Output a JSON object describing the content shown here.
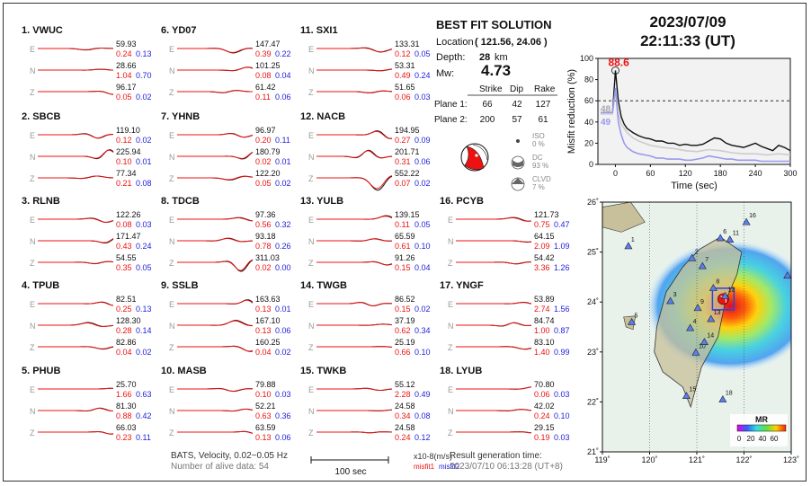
{
  "header": {
    "date": "2023/07/09",
    "time": "22:11:33  (UT)"
  },
  "solution": {
    "title": "BEST FIT SOLUTION",
    "location_label": "Location",
    "location_value": "( 121.56,  24.06 )",
    "depth_label": "Depth:",
    "depth_value": "28",
    "depth_unit": "km",
    "mw_label": "Mw:",
    "mw_value": "4.73",
    "col_strike": "Strike",
    "col_dip": "Dip",
    "col_rake": "Rake",
    "plane1_label": "Plane 1:",
    "plane1": [
      "66",
      "42",
      "127"
    ],
    "plane2_label": "Plane 2:",
    "plane2": [
      "200",
      "57",
      "61"
    ],
    "iso": [
      "ISO",
      "0 %"
    ],
    "dc": [
      "DC",
      "93 %"
    ],
    "clvd": [
      "CLVD",
      "7 %"
    ]
  },
  "stations": [
    {
      "label": "1.  VWUC",
      "rows": [
        {
          "c": "E",
          "amp": "59.93",
          "m1": "0.24",
          "m2": "0.13"
        },
        {
          "c": "N",
          "amp": "28.66",
          "m1": "1.04",
          "m2": "0.70"
        },
        {
          "c": "Z",
          "amp": "96.17",
          "m1": "0.05",
          "m2": "0.02"
        }
      ]
    },
    {
      "label": "2.  SBCB",
      "rows": [
        {
          "c": "E",
          "amp": "119.10",
          "m1": "0.12",
          "m2": "0.02"
        },
        {
          "c": "N",
          "amp": "225.94",
          "m1": "0.10",
          "m2": "0.01"
        },
        {
          "c": "Z",
          "amp": "77.34",
          "m1": "0.21",
          "m2": "0.08"
        }
      ]
    },
    {
      "label": "3.  RLNB",
      "rows": [
        {
          "c": "E",
          "amp": "122.26",
          "m1": "0.08",
          "m2": "0.03"
        },
        {
          "c": "N",
          "amp": "171.47",
          "m1": "0.43",
          "m2": "0.24"
        },
        {
          "c": "Z",
          "amp": "54.55",
          "m1": "0.35",
          "m2": "0.05"
        }
      ]
    },
    {
      "label": "4.  TPUB",
      "rows": [
        {
          "c": "E",
          "amp": "82.51",
          "m1": "0.25",
          "m2": "0.13"
        },
        {
          "c": "N",
          "amp": "128.30",
          "m1": "0.28",
          "m2": "0.14"
        },
        {
          "c": "Z",
          "amp": "82.86",
          "m1": "0.04",
          "m2": "0.02"
        }
      ]
    },
    {
      "label": "5.  PHUB",
      "rows": [
        {
          "c": "E",
          "amp": "25.70",
          "m1": "1.66",
          "m2": "0.63"
        },
        {
          "c": "N",
          "amp": "81.30",
          "m1": "0.88",
          "m2": "0.42"
        },
        {
          "c": "Z",
          "amp": "66.03",
          "m1": "0.23",
          "m2": "0.11"
        }
      ]
    },
    {
      "label": "6.  YD07",
      "rows": [
        {
          "c": "E",
          "amp": "147.47",
          "m1": "0.39",
          "m2": "0.22"
        },
        {
          "c": "N",
          "amp": "101.25",
          "m1": "0.08",
          "m2": "0.04"
        },
        {
          "c": "Z",
          "amp": "61.42",
          "m1": "0.11",
          "m2": "0.06"
        }
      ]
    },
    {
      "label": "7.  YHNB",
      "rows": [
        {
          "c": "E",
          "amp": "96.97",
          "m1": "0.20",
          "m2": "0.11"
        },
        {
          "c": "N",
          "amp": "180.79",
          "m1": "0.02",
          "m2": "0.01"
        },
        {
          "c": "Z",
          "amp": "122.20",
          "m1": "0.05",
          "m2": "0.02"
        }
      ]
    },
    {
      "label": "8.  TDCB",
      "rows": [
        {
          "c": "E",
          "amp": "97.36",
          "m1": "0.56",
          "m2": "0.32"
        },
        {
          "c": "N",
          "amp": "93.18",
          "m1": "0.78",
          "m2": "0.26"
        },
        {
          "c": "Z",
          "amp": "311.03",
          "m1": "0.02",
          "m2": "0.00"
        }
      ]
    },
    {
      "label": "9.  SSLB",
      "rows": [
        {
          "c": "E",
          "amp": "163.63",
          "m1": "0.13",
          "m2": "0.01"
        },
        {
          "c": "N",
          "amp": "167.10",
          "m1": "0.13",
          "m2": "0.06"
        },
        {
          "c": "Z",
          "amp": "160.25",
          "m1": "0.04",
          "m2": "0.02"
        }
      ]
    },
    {
      "label": "10. MASB",
      "rows": [
        {
          "c": "E",
          "amp": "79.88",
          "m1": "0.10",
          "m2": "0.03"
        },
        {
          "c": "N",
          "amp": "52.21",
          "m1": "0.63",
          "m2": "0.36"
        },
        {
          "c": "Z",
          "amp": "63.59",
          "m1": "0.13",
          "m2": "0.06"
        }
      ]
    },
    {
      "label": "11. SXI1",
      "rows": [
        {
          "c": "E",
          "amp": "133.31",
          "m1": "0.12",
          "m2": "0.05"
        },
        {
          "c": "N",
          "amp": "53.31",
          "m1": "0.49",
          "m2": "0.24"
        },
        {
          "c": "Z",
          "amp": "51.65",
          "m1": "0.06",
          "m2": "0.03"
        }
      ]
    },
    {
      "label": "12. NACB",
      "rows": [
        {
          "c": "E",
          "amp": "194.95",
          "m1": "0.27",
          "m2": "0.09"
        },
        {
          "c": "N",
          "amp": "201.71",
          "m1": "0.31",
          "m2": "0.06"
        },
        {
          "c": "Z",
          "amp": "552.22",
          "m1": "0.07",
          "m2": "0.02"
        }
      ]
    },
    {
      "label": "13. YULB",
      "rows": [
        {
          "c": "E",
          "amp": "139.15",
          "m1": "0.11",
          "m2": "0.05"
        },
        {
          "c": "N",
          "amp": "65.59",
          "m1": "0.61",
          "m2": "0.10"
        },
        {
          "c": "Z",
          "amp": "91.26",
          "m1": "0.15",
          "m2": "0.04"
        }
      ]
    },
    {
      "label": "14. TWGB",
      "rows": [
        {
          "c": "E",
          "amp": "86.52",
          "m1": "0.15",
          "m2": "0.02"
        },
        {
          "c": "N",
          "amp": "37.19",
          "m1": "0.62",
          "m2": "0.34"
        },
        {
          "c": "Z",
          "amp": "25.19",
          "m1": "0.66",
          "m2": "0.10"
        }
      ]
    },
    {
      "label": "15. TWKB",
      "rows": [
        {
          "c": "E",
          "amp": "55.12",
          "m1": "2.28",
          "m2": "0.49"
        },
        {
          "c": "N",
          "amp": "24.58",
          "m1": "0.34",
          "m2": "0.08"
        },
        {
          "c": "Z",
          "amp": "24.58",
          "m1": "0.24",
          "m2": "0.12"
        }
      ]
    },
    {
      "label": "16. PCYB",
      "rows": [
        {
          "c": "E",
          "amp": "121.73",
          "m1": "0.75",
          "m2": "0.47"
        },
        {
          "c": "N",
          "amp": "64.15",
          "m1": "2.09",
          "m2": "1.09"
        },
        {
          "c": "Z",
          "amp": "54.42",
          "m1": "3.36",
          "m2": "1.26"
        }
      ]
    },
    {
      "label": "17. YNGF",
      "rows": [
        {
          "c": "E",
          "amp": "53.89",
          "m1": "2.74",
          "m2": "1.56"
        },
        {
          "c": "N",
          "amp": "84.74",
          "m1": "1.00",
          "m2": "0.87"
        },
        {
          "c": "Z",
          "amp": "83.10",
          "m1": "1.40",
          "m2": "0.99"
        }
      ]
    },
    {
      "label": "18. LYUB",
      "rows": [
        {
          "c": "E",
          "amp": "70.80",
          "m1": "0.06",
          "m2": "0.03"
        },
        {
          "c": "N",
          "amp": "42.02",
          "m1": "0.24",
          "m2": "0.10"
        },
        {
          "c": "Z",
          "amp": "29.15",
          "m1": "0.19",
          "m2": "0.03"
        }
      ]
    }
  ],
  "footer": {
    "network": "BATS, Velocity, 0.02~0.05 Hz",
    "alive": "Number of alive data: 54",
    "scalebar": "100 sec",
    "units": "x10-8(m/s)",
    "legend_m1": "misfit1",
    "legend_m2": "misfit2",
    "result_label": "Result generation time:",
    "result_time": "2023/07/10 06:13:28 (UT+8)"
  },
  "chart_data": [
    {
      "type": "line",
      "xlabel": "Time (sec)",
      "ylabel": "Misfit reduction (%)",
      "xlim": [
        -30,
        300
      ],
      "ylim": [
        0,
        100
      ],
      "xticks": [
        0,
        60,
        120,
        180,
        240,
        300
      ],
      "yticks": [
        0,
        20,
        40,
        60,
        80,
        100
      ],
      "threshold": 60,
      "peak_label": "88.6",
      "label_48": "48",
      "label_49": "49",
      "series": [
        {
          "name": "",
          "color": "#111111",
          "x": [
            -25,
            -15,
            -5,
            0,
            5,
            10,
            15,
            20,
            30,
            40,
            50,
            60,
            70,
            80,
            90,
            100,
            110,
            120,
            130,
            140,
            150,
            160,
            170,
            180,
            190,
            200,
            210,
            220,
            230,
            240,
            250,
            260,
            270,
            280,
            290,
            300
          ],
          "y": [
            48,
            48,
            48,
            88.6,
            60,
            45,
            38,
            34,
            30,
            27,
            25,
            24,
            22,
            22,
            20,
            20,
            18,
            19,
            18,
            18,
            19,
            22,
            25,
            24,
            20,
            18,
            17,
            16,
            18,
            20,
            17,
            15,
            13,
            18,
            16,
            13
          ]
        },
        {
          "name": "",
          "color": "#cccccc",
          "x": [
            -25,
            -15,
            -5,
            0,
            5,
            10,
            20,
            30,
            40,
            50,
            60,
            80,
            100,
            120,
            140,
            160,
            180,
            200,
            220,
            240,
            260,
            280,
            300
          ],
          "y": [
            48,
            48,
            48,
            70,
            48,
            38,
            30,
            25,
            22,
            20,
            18,
            16,
            15,
            13,
            12,
            14,
            13,
            11,
            10,
            10,
            9,
            10,
            9
          ]
        },
        {
          "name": "",
          "color": "#9999ee",
          "x": [
            -25,
            -15,
            -5,
            0,
            5,
            10,
            15,
            20,
            30,
            40,
            50,
            60,
            70,
            80,
            90,
            100,
            110,
            120,
            130,
            140,
            150,
            160,
            170,
            180,
            190,
            200,
            210,
            220,
            230,
            240,
            250,
            260,
            270,
            280,
            290,
            300
          ],
          "y": [
            49,
            49,
            49,
            72,
            40,
            28,
            20,
            16,
            12,
            10,
            9,
            8,
            6,
            6,
            5,
            5,
            5,
            4,
            4,
            5,
            6,
            8,
            7,
            6,
            5,
            5,
            4,
            4,
            4,
            4,
            3,
            3,
            3,
            3,
            3,
            3
          ]
        }
      ]
    },
    {
      "type": "heatmap",
      "title": "MR",
      "colorbar_ticks": [
        "0",
        "20",
        "40",
        "60"
      ],
      "xlim": [
        119,
        123
      ],
      "ylim": [
        21,
        26
      ],
      "xticks": [
        "119˚",
        "120˚",
        "121˚",
        "122˚",
        "123˚"
      ],
      "yticks": [
        "21˚",
        "22˚",
        "23˚",
        "24˚",
        "25˚",
        "26˚"
      ],
      "epicenter": [
        121.56,
        24.06
      ],
      "stations": [
        {
          "id": "1",
          "lon": 119.55,
          "lat": 25.12
        },
        {
          "id": "2",
          "lon": 120.9,
          "lat": 24.88
        },
        {
          "id": "3",
          "lon": 120.44,
          "lat": 24.02
        },
        {
          "id": "4",
          "lon": 120.86,
          "lat": 23.48
        },
        {
          "id": "5",
          "lon": 119.62,
          "lat": 23.6
        },
        {
          "id": "6",
          "lon": 121.5,
          "lat": 25.28
        },
        {
          "id": "7",
          "lon": 121.12,
          "lat": 24.72
        },
        {
          "id": "8",
          "lon": 121.35,
          "lat": 24.28
        },
        {
          "id": "9",
          "lon": 121.02,
          "lat": 23.88
        },
        {
          "id": "10",
          "lon": 120.98,
          "lat": 22.99
        },
        {
          "id": "11",
          "lon": 121.7,
          "lat": 25.25
        },
        {
          "id": "12",
          "lon": 121.6,
          "lat": 24.12
        },
        {
          "id": "13",
          "lon": 121.3,
          "lat": 23.66
        },
        {
          "id": "14",
          "lon": 121.16,
          "lat": 23.2
        },
        {
          "id": "15",
          "lon": 120.78,
          "lat": 22.12
        },
        {
          "id": "16",
          "lon": 122.05,
          "lat": 25.6
        },
        {
          "id": "17",
          "lon": 122.92,
          "lat": 24.53
        },
        {
          "id": "18",
          "lon": 121.55,
          "lat": 22.05
        }
      ]
    }
  ]
}
